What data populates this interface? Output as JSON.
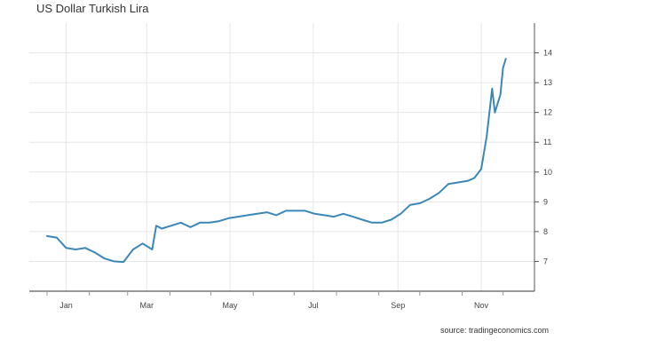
{
  "title": "US Dollar Turkish Lira",
  "source": "source: tradingeconomics.com",
  "chart_data": {
    "type": "line",
    "title": "US Dollar Turkish Lira",
    "xlabel": "",
    "ylabel": "",
    "x_tick_labels": [
      "Jan",
      "Mar",
      "May",
      "Jul",
      "Sep",
      "Nov"
    ],
    "y_ticks": [
      7,
      8,
      9,
      10,
      11,
      12,
      13,
      14
    ],
    "ylim": [
      6,
      15
    ],
    "y_axis_side": "right",
    "grid": true,
    "legend": "none",
    "line_color": "#3b87b8",
    "series": [
      {
        "x": [
          "2021-01-01",
          "2021-01-08",
          "2021-01-15",
          "2021-01-22",
          "2021-01-29",
          "2021-02-05",
          "2021-02-12",
          "2021-02-19",
          "2021-02-26",
          "2021-03-05",
          "2021-03-12",
          "2021-03-19",
          "2021-03-22",
          "2021-03-26",
          "2021-04-02",
          "2021-04-09",
          "2021-04-16",
          "2021-04-23",
          "2021-04-30",
          "2021-05-07",
          "2021-05-14",
          "2021-05-21",
          "2021-05-28",
          "2021-06-04",
          "2021-06-11",
          "2021-06-18",
          "2021-06-25",
          "2021-07-02",
          "2021-07-09",
          "2021-07-16",
          "2021-07-23",
          "2021-07-30",
          "2021-08-06",
          "2021-08-13",
          "2021-08-20",
          "2021-08-27",
          "2021-09-03",
          "2021-09-10",
          "2021-09-17",
          "2021-09-24",
          "2021-10-01",
          "2021-10-08",
          "2021-10-15",
          "2021-10-22",
          "2021-10-29",
          "2021-11-05",
          "2021-11-10",
          "2021-11-15",
          "2021-11-19",
          "2021-11-23",
          "2021-11-25",
          "2021-11-29",
          "2021-12-01",
          "2021-12-03"
        ],
        "values": [
          7.85,
          7.8,
          7.45,
          7.4,
          7.45,
          7.3,
          7.1,
          7.0,
          6.98,
          7.4,
          7.6,
          7.4,
          8.2,
          8.1,
          8.2,
          8.3,
          8.15,
          8.3,
          8.3,
          8.35,
          8.45,
          8.5,
          8.55,
          8.6,
          8.65,
          8.55,
          8.7,
          8.7,
          8.7,
          8.6,
          8.55,
          8.5,
          8.6,
          8.5,
          8.4,
          8.3,
          8.3,
          8.4,
          8.6,
          8.9,
          8.95,
          9.1,
          9.3,
          9.6,
          9.65,
          9.7,
          9.8,
          10.1,
          11.2,
          12.8,
          12.0,
          12.6,
          13.5,
          13.8
        ]
      }
    ]
  }
}
